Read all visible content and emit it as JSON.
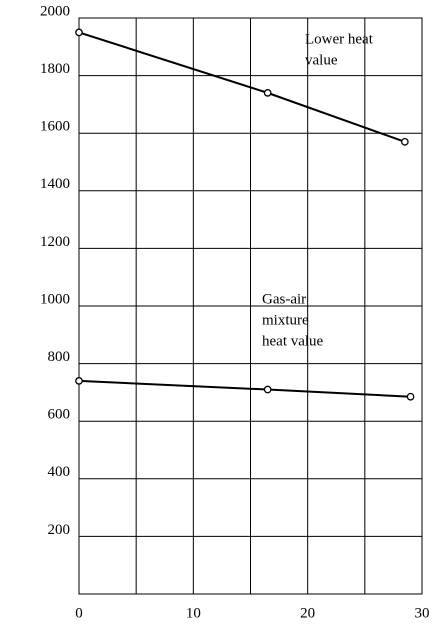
{
  "chart_data": {
    "type": "line",
    "x_label_note": null,
    "series": [
      {
        "color": "#000000",
        "x": [
          0,
          16.5,
          28.5
        ],
        "values": [
          1950,
          1740,
          1570
        ]
      },
      {
        "color": "#000000",
        "x": [
          0,
          16.5,
          29
        ],
        "values": [
          740,
          710,
          685
        ]
      }
    ],
    "annotations": [
      {
        "lines": [
          "Lower heat",
          "value"
        ]
      },
      {
        "lines": [
          "Gas-air",
          "mixture",
          "heat value"
        ]
      }
    ],
    "xlim": [
      0,
      30
    ],
    "xticks": [
      0,
      10,
      20,
      30
    ],
    "xminor": [
      5,
      15,
      25
    ],
    "ylim": [
      0,
      2000
    ],
    "yticks": [
      200,
      400,
      600,
      800,
      1000,
      1200,
      1400,
      1600,
      1800,
      2000
    ],
    "grid": true
  }
}
